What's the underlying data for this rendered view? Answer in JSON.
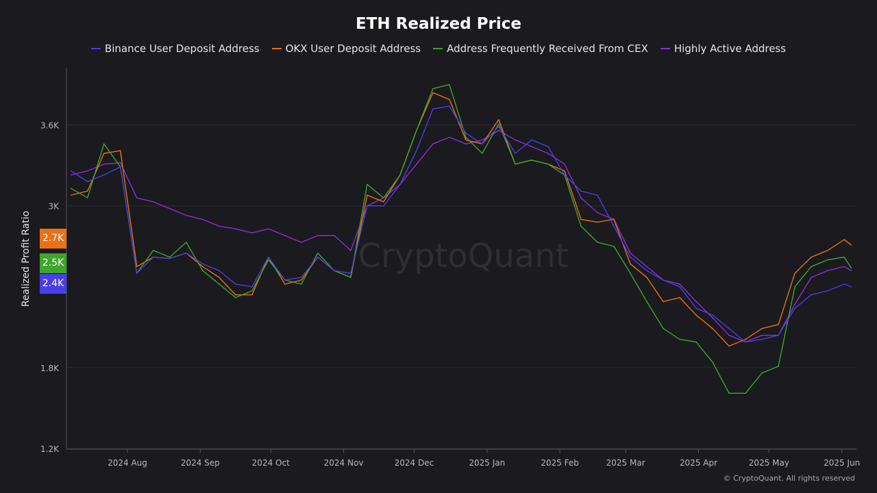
{
  "chart_data": {
    "type": "line",
    "title": "ETH Realized Price",
    "ylabel": "Realized Profit Ratio",
    "xlabel": "",
    "ylim": [
      1200,
      4020
    ],
    "yticks": [
      "1.2K",
      "1.8K",
      "3K",
      "3.6K"
    ],
    "ytick_values": [
      1200,
      1800,
      3000,
      3600
    ],
    "xticks": [
      "2024 Aug",
      "2024 Sep",
      "2024 Oct",
      "2024 Nov",
      "2024 Dec",
      "2025 Jan",
      "2025 Feb",
      "2025 Mar",
      "2025 Apr",
      "2025 May",
      "2025 Jun"
    ],
    "xtick_dates": [
      "2024-08-01",
      "2024-09-01",
      "2024-10-01",
      "2024-11-01",
      "2024-12-01",
      "2025-01-01",
      "2025-02-01",
      "2025-03-01",
      "2025-04-01",
      "2025-05-01",
      "2025-06-01"
    ],
    "grid": "horizontal",
    "legend_position": "top",
    "watermark": "CryptoQuant",
    "copyright": "© CryptoQuant. All rights reserved",
    "x": [
      "2024-07-08",
      "2024-07-15",
      "2024-07-22",
      "2024-07-29",
      "2024-08-05",
      "2024-08-12",
      "2024-08-19",
      "2024-08-26",
      "2024-09-02",
      "2024-09-09",
      "2024-09-16",
      "2024-09-23",
      "2024-09-30",
      "2024-10-07",
      "2024-10-14",
      "2024-10-21",
      "2024-10-28",
      "2024-11-04",
      "2024-11-11",
      "2024-11-18",
      "2024-11-25",
      "2024-12-02",
      "2024-12-09",
      "2024-12-16",
      "2024-12-23",
      "2024-12-30",
      "2025-01-06",
      "2025-01-13",
      "2025-01-20",
      "2025-01-27",
      "2025-02-03",
      "2025-02-10",
      "2025-02-17",
      "2025-02-24",
      "2025-03-03",
      "2025-03-10",
      "2025-03-17",
      "2025-03-24",
      "2025-03-31",
      "2025-04-07",
      "2025-04-14",
      "2025-04-21",
      "2025-04-28",
      "2025-05-05",
      "2025-05-12",
      "2025-05-19",
      "2025-05-26",
      "2025-06-02",
      "2025-06-05"
    ],
    "series": [
      {
        "name": "Binance User Deposit Address",
        "color": "#4a3ee6",
        "last_label": "2.4K",
        "values": [
          3260,
          3180,
          3230,
          3290,
          2500,
          2620,
          2610,
          2650,
          2570,
          2520,
          2420,
          2400,
          2620,
          2450,
          2470,
          2620,
          2520,
          2500,
          3000,
          3000,
          3160,
          3410,
          3720,
          3740,
          3540,
          3460,
          3590,
          3390,
          3490,
          3440,
          3230,
          3110,
          3080,
          2850,
          2620,
          2520,
          2450,
          2400,
          2240,
          2190,
          2090,
          1990,
          2010,
          2040,
          2240,
          2340,
          2370,
          2420,
          2400
        ]
      },
      {
        "name": "OKX User Deposit Address",
        "color": "#ec7014",
        "last_label": "2.7K",
        "values": [
          3080,
          3110,
          3390,
          3410,
          2550,
          2620,
          2610,
          2650,
          2550,
          2470,
          2340,
          2340,
          2620,
          2420,
          2450,
          2620,
          2520,
          2470,
          3080,
          3030,
          3230,
          3560,
          3840,
          3790,
          3490,
          3460,
          3640,
          3310,
          3340,
          3310,
          3260,
          2900,
          2880,
          2900,
          2570,
          2470,
          2290,
          2320,
          2190,
          2090,
          1960,
          2010,
          2090,
          2120,
          2500,
          2620,
          2670,
          2750,
          2710
        ]
      },
      {
        "name": "Address Frequently Received From CEX",
        "color": "#3fa52b",
        "last_label": "2.5K",
        "values": [
          3130,
          3060,
          3460,
          3290,
          2500,
          2670,
          2620,
          2730,
          2520,
          2420,
          2320,
          2370,
          2600,
          2450,
          2420,
          2650,
          2520,
          2470,
          3160,
          3060,
          3230,
          3560,
          3870,
          3900,
          3510,
          3390,
          3610,
          3310,
          3340,
          3310,
          3230,
          2850,
          2730,
          2700,
          2500,
          2290,
          2090,
          2010,
          1990,
          1840,
          1610,
          1610,
          1760,
          1810,
          2400,
          2550,
          2600,
          2620,
          2540
        ]
      },
      {
        "name": "Highly Active Address",
        "color": "#8b2fd6",
        "values": [
          3230,
          3260,
          3310,
          3320,
          3060,
          3030,
          2980,
          2930,
          2900,
          2850,
          2830,
          2800,
          2830,
          2780,
          2730,
          2780,
          2780,
          2670,
          3000,
          3060,
          3160,
          3310,
          3460,
          3510,
          3460,
          3490,
          3560,
          3490,
          3440,
          3390,
          3310,
          3060,
          2950,
          2900,
          2650,
          2550,
          2450,
          2420,
          2290,
          2170,
          2040,
          1990,
          2040,
          2040,
          2270,
          2470,
          2520,
          2550,
          2520
        ]
      }
    ]
  }
}
